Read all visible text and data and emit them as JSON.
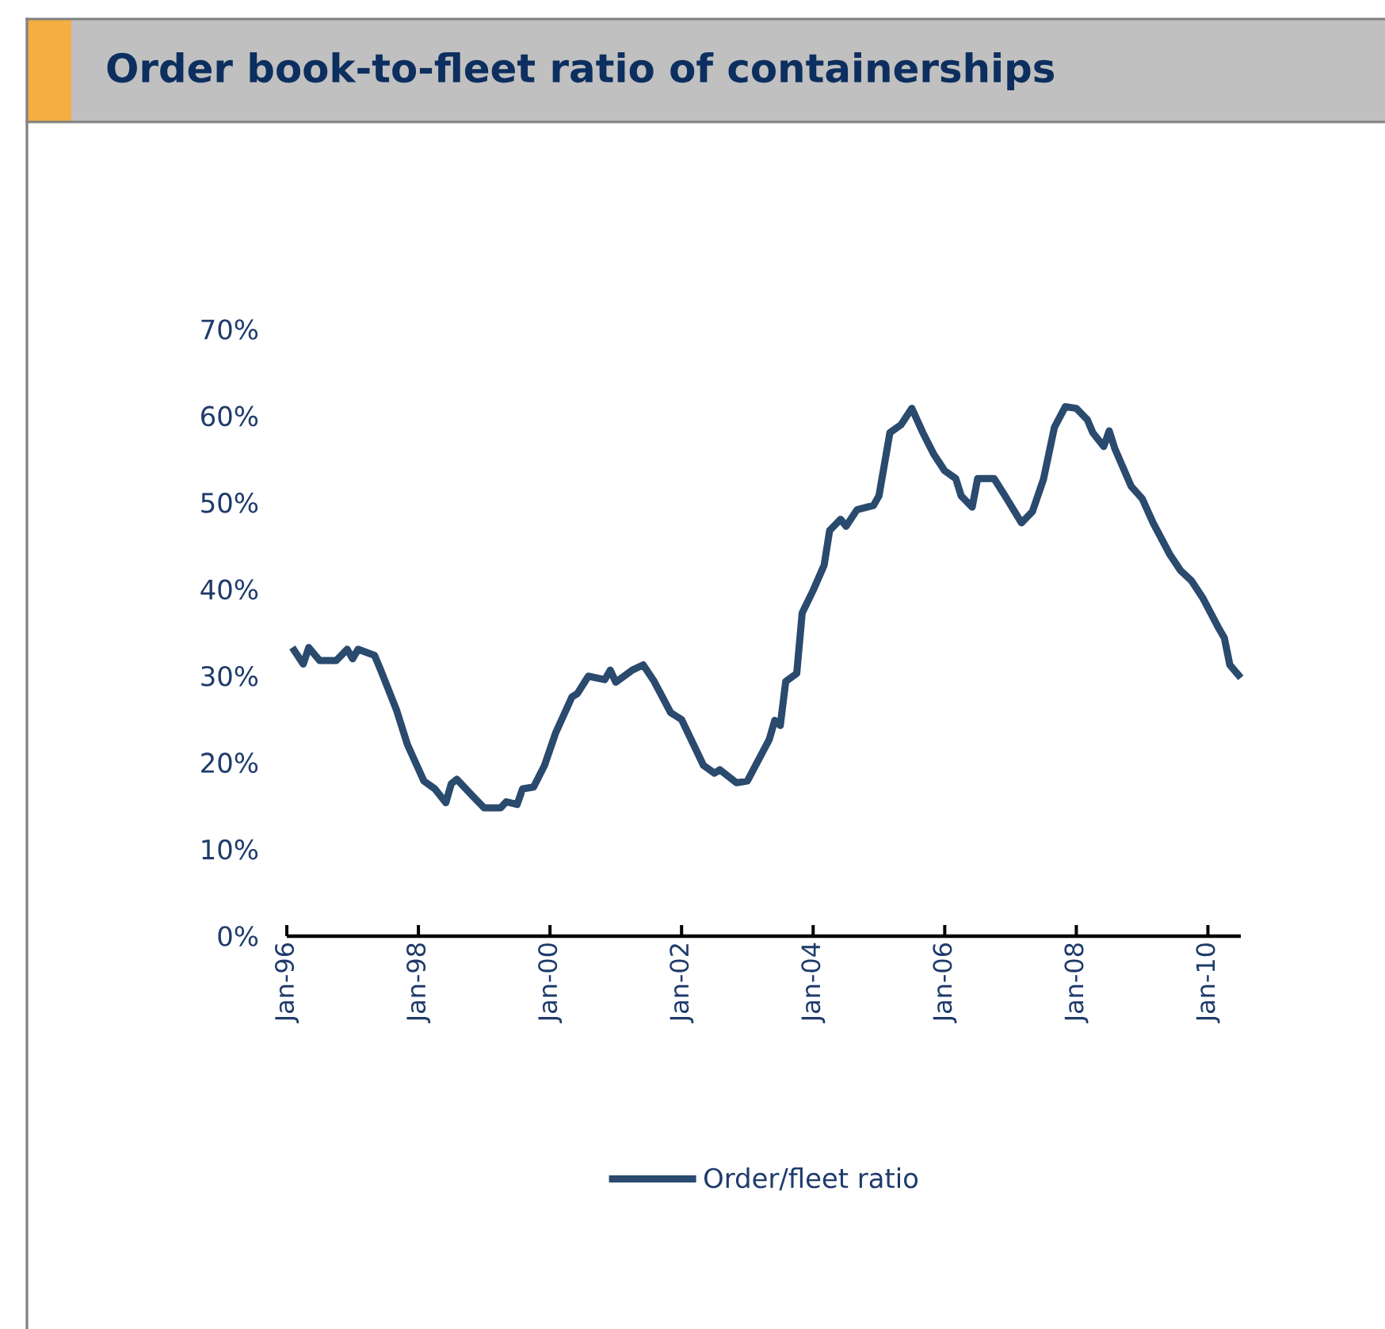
{
  "chart_data": {
    "type": "line",
    "title": "Order book-to-fleet ratio of containerships",
    "x": [
      "1996-02",
      "1996-04",
      "1996-05",
      "1996-07",
      "1996-10",
      "1996-12",
      "1997-01",
      "1997-02",
      "1997-05",
      "1997-06",
      "1997-09",
      "1997-11",
      "1997-12",
      "1998-02",
      "1998-04",
      "1998-06",
      "1998-07",
      "1998-08",
      "1998-11",
      "1999-01",
      "1999-04",
      "1999-05",
      "1999-07",
      "1999-08",
      "1999-10",
      "1999-12",
      "2000-02",
      "2000-05",
      "2000-06",
      "2000-08",
      "2000-11",
      "2000-12",
      "2001-01",
      "2001-04",
      "2001-06",
      "2001-08",
      "2001-11",
      "2002-01",
      "2002-05",
      "2002-07",
      "2002-08",
      "2002-11",
      "2003-01",
      "2003-03",
      "2003-05",
      "2003-06",
      "2003-07",
      "2003-08",
      "2003-10",
      "2003-11",
      "2004-01",
      "2004-03",
      "2004-04",
      "2004-06",
      "2004-07",
      "2004-09",
      "2004-12",
      "2005-01",
      "2005-03",
      "2005-05",
      "2005-07",
      "2005-09",
      "2005-11",
      "2006-01",
      "2006-03",
      "2006-04",
      "2006-06",
      "2006-07",
      "2006-10",
      "2006-12",
      "2007-03",
      "2007-05",
      "2007-07",
      "2007-09",
      "2007-11",
      "2008-01",
      "2008-03",
      "2008-04",
      "2008-06",
      "2008-07",
      "2008-08",
      "2008-11",
      "2009-01",
      "2009-03",
      "2009-06",
      "2009-08",
      "2009-10",
      "2009-12",
      "2010-03",
      "2010-04",
      "2010-05",
      "2010-07"
    ],
    "series": [
      {
        "name": "Order/fleet ratio",
        "color": "#2a4a6e",
        "values": [
          33.3,
          31.4,
          33.3,
          31.8,
          31.8,
          33.1,
          32,
          33.1,
          32.4,
          30.9,
          26.1,
          22.1,
          20.7,
          17.9,
          17,
          15.4,
          17.6,
          18.1,
          16.1,
          14.8,
          14.8,
          15.5,
          15.2,
          17,
          17.2,
          19.7,
          23.4,
          27.6,
          28,
          30,
          29.6,
          30.7,
          29.3,
          30.7,
          31.3,
          29.4,
          25.8,
          25,
          19.7,
          18.8,
          19.2,
          17.7,
          17.9,
          20.3,
          22.7,
          24.9,
          24.3,
          29.4,
          30.3,
          37.3,
          39.9,
          42.8,
          46.8,
          48.1,
          47.3,
          49.2,
          49.7,
          50.8,
          58.1,
          59,
          60.9,
          58.1,
          55.6,
          53.7,
          52.8,
          50.8,
          49.5,
          52.8,
          52.8,
          50.8,
          47.7,
          49,
          52.7,
          58.7,
          61.1,
          60.9,
          59.6,
          58.1,
          56.5,
          58.3,
          56.3,
          51.9,
          50.5,
          47.7,
          44.1,
          42.2,
          41,
          39.1,
          35.5,
          34.4,
          31.3,
          29.8
        ]
      }
    ],
    "xlim": [
      "1996-01",
      "2010-07"
    ],
    "xticks": [
      {
        "value": "1996-01",
        "label": "Jan-96"
      },
      {
        "value": "1998-01",
        "label": "Jan-98"
      },
      {
        "value": "2000-01",
        "label": "Jan-00"
      },
      {
        "value": "2002-01",
        "label": "Jan-02"
      },
      {
        "value": "2004-01",
        "label": "Jan-04"
      },
      {
        "value": "2006-01",
        "label": "Jan-06"
      },
      {
        "value": "2008-01",
        "label": "Jan-08"
      },
      {
        "value": "2010-01",
        "label": "Jan-10"
      }
    ],
    "ylim": [
      0,
      70
    ],
    "yticks": [
      {
        "value": 0,
        "label": "0%"
      },
      {
        "value": 10,
        "label": "10%"
      },
      {
        "value": 20,
        "label": "20%"
      },
      {
        "value": 30,
        "label": "30%"
      },
      {
        "value": 40,
        "label": "40%"
      },
      {
        "value": 50,
        "label": "50%"
      },
      {
        "value": 60,
        "label": "60%"
      },
      {
        "value": 70,
        "label": "70%"
      }
    ],
    "legend": "bottom",
    "marker": "none",
    "line_style": "solid"
  }
}
